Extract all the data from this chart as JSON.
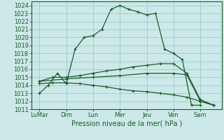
{
  "title": "",
  "xlabel": "Pression niveau de la mer( hPa )",
  "ylim": [
    1011,
    1024.5
  ],
  "xlim": [
    -0.3,
    6.8
  ],
  "xtick_labels": [
    "LuMar",
    "Dim",
    "Lun",
    "Mer",
    "Jeu",
    "Ven",
    "Sam"
  ],
  "xtick_positions": [
    0,
    1,
    2,
    3,
    4,
    5,
    6
  ],
  "ytick_positions": [
    1011,
    1012,
    1013,
    1014,
    1015,
    1016,
    1017,
    1018,
    1019,
    1020,
    1021,
    1022,
    1023,
    1024
  ],
  "background_color": "#cce8e8",
  "grid_color": "#99cccc",
  "line_color": "#1a5c2a",
  "lines": [
    {
      "x": [
        0.0,
        0.33,
        0.67,
        1.0,
        1.33,
        1.67,
        2.0,
        2.33,
        2.67,
        3.0,
        3.33,
        3.67,
        4.0,
        4.33,
        4.67,
        5.0,
        5.33,
        5.67,
        6.0
      ],
      "y": [
        1013.0,
        1014.0,
        1015.5,
        1014.2,
        1018.5,
        1020.0,
        1020.2,
        1021.0,
        1023.5,
        1024.0,
        1023.5,
        1023.2,
        1022.8,
        1023.0,
        1018.5,
        1018.0,
        1017.2,
        1011.5,
        1011.5
      ],
      "marker": "+"
    },
    {
      "x": [
        0.0,
        0.5,
        1.0,
        1.5,
        2.0,
        2.5,
        3.0,
        3.5,
        4.0,
        4.5,
        5.0,
        5.5,
        6.0,
        6.5
      ],
      "y": [
        1014.5,
        1015.0,
        1015.0,
        1015.2,
        1015.5,
        1015.8,
        1016.0,
        1016.3,
        1016.5,
        1016.7,
        1016.7,
        1015.5,
        1012.2,
        1011.5
      ],
      "marker": "+"
    },
    {
      "x": [
        0.0,
        0.5,
        1.0,
        1.5,
        2.0,
        2.5,
        3.0,
        3.5,
        4.0,
        4.5,
        5.0,
        5.5,
        6.0,
        6.5
      ],
      "y": [
        1014.2,
        1014.3,
        1014.3,
        1014.2,
        1014.0,
        1013.8,
        1013.5,
        1013.3,
        1013.2,
        1013.0,
        1012.8,
        1012.5,
        1012.0,
        1011.5
      ],
      "marker": "+"
    },
    {
      "x": [
        0.0,
        1.0,
        2.0,
        3.0,
        4.0,
        5.0,
        5.5,
        6.0,
        6.5
      ],
      "y": [
        1014.5,
        1014.8,
        1015.0,
        1015.2,
        1015.5,
        1015.5,
        1015.3,
        1012.0,
        1011.5
      ],
      "marker": "+"
    }
  ]
}
